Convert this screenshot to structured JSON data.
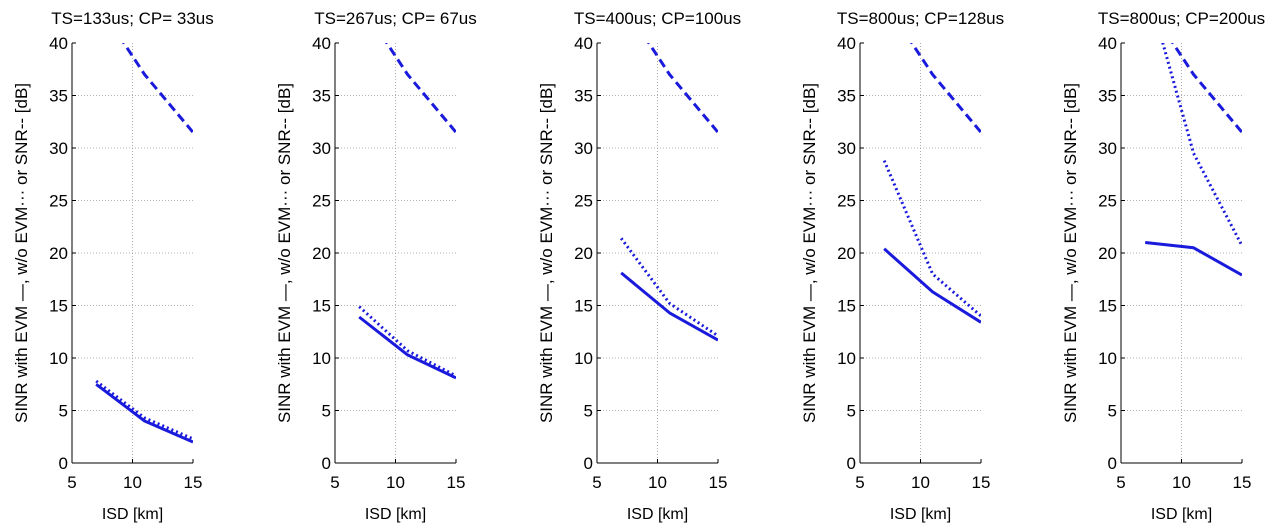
{
  "chart_data": [
    {
      "type": "line",
      "title": "TS=133us; CP= 33us",
      "xlabel": "ISD [km]",
      "ylabel": "SINR with EVM —, w/o EVM··· or SNR-- [dB]",
      "xlim": [
        5,
        15
      ],
      "ylim": [
        0,
        40
      ],
      "xticks": [
        5,
        10,
        15
      ],
      "yticks": [
        0,
        5,
        10,
        15,
        20,
        25,
        30,
        35,
        40
      ],
      "grid": true,
      "x": [
        7,
        11,
        15
      ],
      "series": [
        {
          "style": "solid",
          "values": [
            7.5,
            4.0,
            2.0
          ]
        },
        {
          "style": "dotted",
          "values": [
            7.8,
            4.3,
            2.3
          ]
        },
        {
          "style": "dashed",
          "values": [
            44.0,
            37.0,
            31.5
          ]
        }
      ]
    },
    {
      "type": "line",
      "title": "TS=267us; CP= 67us",
      "xlabel": "ISD [km]",
      "ylabel": "SINR with EVM —, w/o EVM··· or SNR-- [dB]",
      "xlim": [
        5,
        15
      ],
      "ylim": [
        0,
        40
      ],
      "xticks": [
        5,
        10,
        15
      ],
      "yticks": [
        0,
        5,
        10,
        15,
        20,
        25,
        30,
        35,
        40
      ],
      "grid": true,
      "x": [
        7,
        11,
        15
      ],
      "series": [
        {
          "style": "solid",
          "values": [
            13.9,
            10.3,
            8.1
          ]
        },
        {
          "style": "dotted",
          "values": [
            14.9,
            10.7,
            8.3
          ]
        },
        {
          "style": "dashed",
          "values": [
            44.0,
            37.0,
            31.5
          ]
        }
      ]
    },
    {
      "type": "line",
      "title": "TS=400us; CP=100us",
      "xlabel": "ISD [km]",
      "ylabel": "SINR with EVM —, w/o EVM··· or SNR-- [dB]",
      "xlim": [
        5,
        15
      ],
      "ylim": [
        0,
        40
      ],
      "xticks": [
        5,
        10,
        15
      ],
      "yticks": [
        0,
        5,
        10,
        15,
        20,
        25,
        30,
        35,
        40
      ],
      "grid": true,
      "x": [
        7,
        11,
        15
      ],
      "series": [
        {
          "style": "solid",
          "values": [
            18.1,
            14.3,
            11.7
          ]
        },
        {
          "style": "dotted",
          "values": [
            21.4,
            15.2,
            12.1
          ]
        },
        {
          "style": "dashed",
          "values": [
            44.0,
            37.0,
            31.5
          ]
        }
      ]
    },
    {
      "type": "line",
      "title": "TS=800us; CP=128us",
      "xlabel": "ISD [km]",
      "ylabel": "SINR with EVM —, w/o EVM··· or SNR-- [dB]",
      "xlim": [
        5,
        15
      ],
      "ylim": [
        0,
        40
      ],
      "xticks": [
        5,
        10,
        15
      ],
      "yticks": [
        0,
        5,
        10,
        15,
        20,
        25,
        30,
        35,
        40
      ],
      "grid": true,
      "x": [
        7,
        11,
        15
      ],
      "series": [
        {
          "style": "solid",
          "values": [
            20.4,
            16.3,
            13.4
          ]
        },
        {
          "style": "dotted",
          "values": [
            28.8,
            18.0,
            14.0
          ]
        },
        {
          "style": "dashed",
          "values": [
            44.0,
            37.0,
            31.5
          ]
        }
      ]
    },
    {
      "type": "line",
      "title": "TS=800us; CP=200us",
      "xlabel": "ISD [km]",
      "ylabel": "SINR with EVM —, w/o EVM··· or SNR-- [dB]",
      "xlim": [
        5,
        15
      ],
      "ylim": [
        0,
        40
      ],
      "xticks": [
        5,
        10,
        15
      ],
      "yticks": [
        0,
        5,
        10,
        15,
        20,
        25,
        30,
        35,
        40
      ],
      "grid": true,
      "x": [
        7,
        11,
        15
      ],
      "series": [
        {
          "style": "solid",
          "values": [
            21.0,
            20.5,
            17.9
          ]
        },
        {
          "style": "dotted",
          "values": [
            46.0,
            29.5,
            20.7
          ]
        },
        {
          "style": "dashed",
          "values": [
            44.0,
            37.0,
            31.5
          ]
        }
      ]
    }
  ],
  "colors": {
    "line": "#1a1adc",
    "grid": "#9a9a9a",
    "axis": "#000000"
  }
}
